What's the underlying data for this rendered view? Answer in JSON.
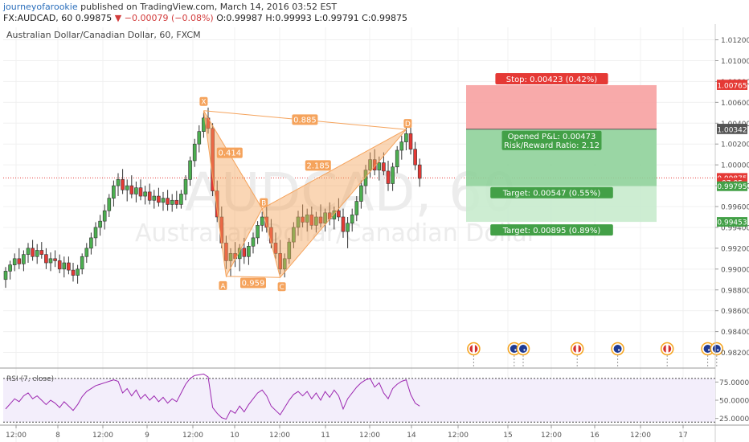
{
  "header": {
    "author": "journeyofarookie",
    "published": "published on TradingView.com, March 14, 2016 03:52 EST",
    "symbol": "FX:AUDCAD, 60",
    "last": "0.99875",
    "change": "▼ −0.00079 (−0.08%)",
    "ohlc": "O:0.99987 H:0.99993 L:0.99791 C:0.99875"
  },
  "chart_data": {
    "type": "candlestick",
    "title": "Australian Dollar/Canadian Dollar, 60, FXCM",
    "watermark_symbol": "AUDCAD, 60",
    "watermark_name": "Australian Dollar/Canadian Dollar",
    "colors": {
      "up": "#4caf50",
      "down": "#e53935",
      "pattern": "#f5a35c",
      "rsi": "#9c27b0",
      "stop": "#ef5350",
      "target": "#4caf50"
    },
    "ylim": [
      0.9805,
      1.0132
    ],
    "yticks": [
      1.012,
      1.01,
      1.008,
      1.006,
      1.004,
      1.002,
      1.0,
      0.998,
      0.996,
      0.994,
      0.992,
      0.99,
      0.988,
      0.986,
      0.984,
      0.982
    ],
    "ytick_labels": [
      "1.01200",
      "1.01000",
      "1.00800",
      "1.00600",
      "1.00400",
      "1.00200",
      "1.00000",
      "0.99800",
      "0.99600",
      "0.99400",
      "0.99200",
      "0.99000",
      "0.98800",
      "0.98600",
      "0.98400",
      "0.98200"
    ],
    "xaxis_labels": [
      "12:00",
      "8",
      "12:00",
      "9",
      "12:00",
      "10",
      "12:00",
      "11",
      "12:00",
      "14",
      "12:00",
      "15",
      "12:00",
      "16",
      "12:00",
      "17"
    ],
    "price_tags": [
      {
        "label": "1.00771",
        "value": 1.00771,
        "color": "#e53935"
      },
      {
        "label": "1.00765",
        "value": 1.00765,
        "color": "#e53935"
      },
      {
        "label": "1.00348",
        "value": 1.00348,
        "color": "#555555"
      },
      {
        "label": "1.00342",
        "value": 1.00342,
        "color": "#555555"
      },
      {
        "label": "0.99875",
        "value": 0.99875,
        "color": "#e53935"
      },
      {
        "label": "07:05",
        "value": 0.9983,
        "color": "#e53935"
      },
      {
        "label": "0.99795",
        "value": 0.99795,
        "color": "#43a047"
      },
      {
        "label": "0.99453",
        "value": 0.99453,
        "color": "#43a047"
      }
    ],
    "current_price": 0.99875,
    "candles": [
      [
        0.989,
        0.9902,
        0.9882,
        0.9898
      ],
      [
        0.9898,
        0.9908,
        0.989,
        0.9904
      ],
      [
        0.9904,
        0.9915,
        0.9898,
        0.991
      ],
      [
        0.991,
        0.992,
        0.99,
        0.9905
      ],
      [
        0.9905,
        0.9918,
        0.9898,
        0.9914
      ],
      [
        0.9914,
        0.9925,
        0.9906,
        0.992
      ],
      [
        0.992,
        0.9928,
        0.9908,
        0.9912
      ],
      [
        0.9912,
        0.9924,
        0.9905,
        0.9918
      ],
      [
        0.9918,
        0.9926,
        0.991,
        0.9914
      ],
      [
        0.9914,
        0.992,
        0.99,
        0.9906
      ],
      [
        0.9906,
        0.9916,
        0.9898,
        0.991
      ],
      [
        0.991,
        0.9918,
        0.9902,
        0.9908
      ],
      [
        0.9908,
        0.9914,
        0.9896,
        0.99
      ],
      [
        0.99,
        0.9912,
        0.9892,
        0.9906
      ],
      [
        0.9906,
        0.9912,
        0.9895,
        0.9899
      ],
      [
        0.9899,
        0.9906,
        0.9888,
        0.9894
      ],
      [
        0.9894,
        0.9904,
        0.9886,
        0.99
      ],
      [
        0.99,
        0.9915,
        0.9895,
        0.9912
      ],
      [
        0.9912,
        0.9925,
        0.9906,
        0.992
      ],
      [
        0.992,
        0.9935,
        0.9914,
        0.993
      ],
      [
        0.993,
        0.9945,
        0.9922,
        0.994
      ],
      [
        0.994,
        0.9952,
        0.9932,
        0.9946
      ],
      [
        0.9946,
        0.9962,
        0.9938,
        0.9956
      ],
      [
        0.9956,
        0.9972,
        0.995,
        0.9968
      ],
      [
        0.9968,
        0.9985,
        0.996,
        0.998
      ],
      [
        0.998,
        0.9992,
        0.997,
        0.9986
      ],
      [
        0.9986,
        0.9996,
        0.9972,
        0.9976
      ],
      [
        0.9976,
        0.9986,
        0.9965,
        0.998
      ],
      [
        0.998,
        0.999,
        0.9968,
        0.9972
      ],
      [
        0.9972,
        0.9984,
        0.9964,
        0.9978
      ],
      [
        0.9978,
        0.9986,
        0.9966,
        0.997
      ],
      [
        0.997,
        0.998,
        0.9962,
        0.9974
      ],
      [
        0.9974,
        0.9982,
        0.9962,
        0.9966
      ],
      [
        0.9966,
        0.9976,
        0.9958,
        0.997
      ],
      [
        0.997,
        0.9978,
        0.996,
        0.9964
      ],
      [
        0.9964,
        0.9974,
        0.9956,
        0.9968
      ],
      [
        0.9968,
        0.9976,
        0.9956,
        0.9962
      ],
      [
        0.9962,
        0.9972,
        0.9955,
        0.9966
      ],
      [
        0.9966,
        0.9975,
        0.9958,
        0.9962
      ],
      [
        0.9962,
        0.9976,
        0.9958,
        0.9972
      ],
      [
        0.9972,
        0.999,
        0.9966,
        0.9986
      ],
      [
        0.9986,
        1.0008,
        0.998,
        1.0004
      ],
      [
        1.0004,
        1.0025,
        0.9998,
        1.002
      ],
      [
        1.002,
        1.0038,
        1.0012,
        1.0032
      ],
      [
        1.0032,
        1.005,
        1.0026,
        1.0045
      ],
      [
        1.0045,
        1.0055,
        1.003,
        1.0035
      ],
      [
        1.0035,
        1.004,
        0.997,
        0.9975
      ],
      [
        0.9975,
        0.9985,
        0.9945,
        0.995
      ],
      [
        0.995,
        0.996,
        0.992,
        0.9925
      ],
      [
        0.9925,
        0.9932,
        0.99,
        0.9908
      ],
      [
        0.9908,
        0.992,
        0.9893,
        0.9915
      ],
      [
        0.9915,
        0.9926,
        0.9902,
        0.991
      ],
      [
        0.991,
        0.9924,
        0.9898,
        0.992
      ],
      [
        0.992,
        0.993,
        0.9905,
        0.9912
      ],
      [
        0.9912,
        0.9926,
        0.9904,
        0.9922
      ],
      [
        0.9922,
        0.9935,
        0.9915,
        0.993
      ],
      [
        0.993,
        0.9946,
        0.9924,
        0.9942
      ],
      [
        0.9942,
        0.9955,
        0.9936,
        0.995
      ],
      [
        0.995,
        0.996,
        0.9935,
        0.994
      ],
      [
        0.994,
        0.9948,
        0.992,
        0.9925
      ],
      [
        0.9925,
        0.9935,
        0.991,
        0.9915
      ],
      [
        0.9915,
        0.9928,
        0.9895,
        0.99
      ],
      [
        0.99,
        0.9915,
        0.9892,
        0.991
      ],
      [
        0.991,
        0.993,
        0.9905,
        0.9926
      ],
      [
        0.9926,
        0.9945,
        0.992,
        0.994
      ],
      [
        0.994,
        0.9956,
        0.9932,
        0.995
      ],
      [
        0.995,
        0.9962,
        0.994,
        0.9945
      ],
      [
        0.9945,
        0.9958,
        0.9936,
        0.9952
      ],
      [
        0.9952,
        0.996,
        0.9938,
        0.9942
      ],
      [
        0.9942,
        0.9955,
        0.9935,
        0.995
      ],
      [
        0.995,
        0.9962,
        0.994,
        0.9944
      ],
      [
        0.9944,
        0.9958,
        0.9936,
        0.9954
      ],
      [
        0.9954,
        0.9964,
        0.9942,
        0.9948
      ],
      [
        0.9948,
        0.996,
        0.9938,
        0.9956
      ],
      [
        0.9956,
        0.9968,
        0.9946,
        0.995
      ],
      [
        0.995,
        0.9958,
        0.993,
        0.9936
      ],
      [
        0.9936,
        0.995,
        0.992,
        0.9944
      ],
      [
        0.9944,
        0.9958,
        0.9936,
        0.9952
      ],
      [
        0.9952,
        0.997,
        0.9946,
        0.9965
      ],
      [
        0.9965,
        0.9985,
        0.9958,
        0.998
      ],
      [
        0.998,
        1.0,
        0.9972,
        0.9995
      ],
      [
        0.9995,
        1.0012,
        0.9988,
        1.0005
      ],
      [
        1.0005,
        1.0015,
        0.999,
        0.9995
      ],
      [
        0.9995,
        1.0008,
        0.9985,
        1.0002
      ],
      [
        1.0002,
        1.0012,
        0.999,
        0.9994
      ],
      [
        0.9994,
        1.0004,
        0.9975,
        0.9982
      ],
      [
        0.9982,
        1.0002,
        0.9975,
        0.9998
      ],
      [
        0.9998,
        1.0018,
        0.9992,
        1.0014
      ],
      [
        1.0014,
        1.0028,
        1.0005,
        1.0022
      ],
      [
        1.0022,
        1.0036,
        1.0014,
        1.003
      ],
      [
        1.003,
        1.0036,
        1.001,
        1.0015
      ],
      [
        1.0015,
        1.0022,
        0.9995,
        1.0
      ],
      [
        1.0,
        1.0006,
        0.9979,
        0.9987
      ]
    ],
    "harmonic": {
      "name": "bearish bat",
      "points": [
        {
          "label": "X",
          "x_index": 44,
          "y": 1.0052
        },
        {
          "label": "A",
          "x_index": 49,
          "y": 0.9893
        },
        {
          "label": "B",
          "x_index": 57,
          "y": 0.9958
        },
        {
          "label": "C",
          "x_index": 61,
          "y": 0.9892
        },
        {
          "label": "D",
          "x_index": 89,
          "y": 1.0034
        }
      ],
      "ratios": [
        {
          "label": "0.885",
          "between": "XD"
        },
        {
          "label": "0.414",
          "between": "XB"
        },
        {
          "label": "0.959",
          "between": "AC"
        },
        {
          "label": "2.185",
          "between": "BD"
        }
      ]
    },
    "position": {
      "entry": 1.00342,
      "stop": 1.00765,
      "target1": 0.99795,
      "target2": 0.99453,
      "stop_label": "Stop: 0.00423 (0.42%)",
      "pnl_label": "Opened P&L: 0.00473",
      "rr_label": "Risk/Reward Ratio: 2.12",
      "target1_label": "Target: 0.00547 (0.55%)",
      "target2_label": "Target: 0.00895 (0.89%)"
    },
    "events": [
      {
        "flag": "CA",
        "x_index": 104
      },
      {
        "flag": "AU",
        "x_index": 113
      },
      {
        "flag": "AU",
        "x_index": 115
      },
      {
        "flag": "CA",
        "x_index": 127
      },
      {
        "flag": "AU",
        "x_index": 136
      },
      {
        "flag": "CA",
        "x_index": 147
      },
      {
        "flag": "AU",
        "x_index": 156
      },
      {
        "flag": "AU",
        "x_index": 158
      }
    ],
    "rsi": {
      "label": "RSI (7, close)",
      "ylim": [
        18,
        92
      ],
      "yticks": [
        75,
        50,
        25
      ],
      "ytick_labels": [
        "75.0000",
        "50.0000",
        "25.0000"
      ],
      "bands": [
        80,
        20
      ],
      "values": [
        38,
        45,
        52,
        48,
        56,
        60,
        52,
        56,
        50,
        44,
        50,
        46,
        40,
        48,
        42,
        36,
        44,
        55,
        62,
        66,
        70,
        72,
        74,
        76,
        78,
        76,
        60,
        66,
        56,
        64,
        52,
        58,
        50,
        56,
        48,
        54,
        46,
        52,
        48,
        60,
        72,
        80,
        84,
        85,
        86,
        82,
        40,
        32,
        26,
        24,
        36,
        32,
        42,
        34,
        44,
        52,
        60,
        64,
        56,
        42,
        36,
        30,
        40,
        50,
        58,
        62,
        56,
        62,
        52,
        60,
        50,
        62,
        54,
        64,
        56,
        38,
        52,
        60,
        68,
        74,
        78,
        80,
        68,
        74,
        60,
        52,
        66,
        72,
        76,
        78,
        58,
        46,
        42
      ]
    }
  }
}
